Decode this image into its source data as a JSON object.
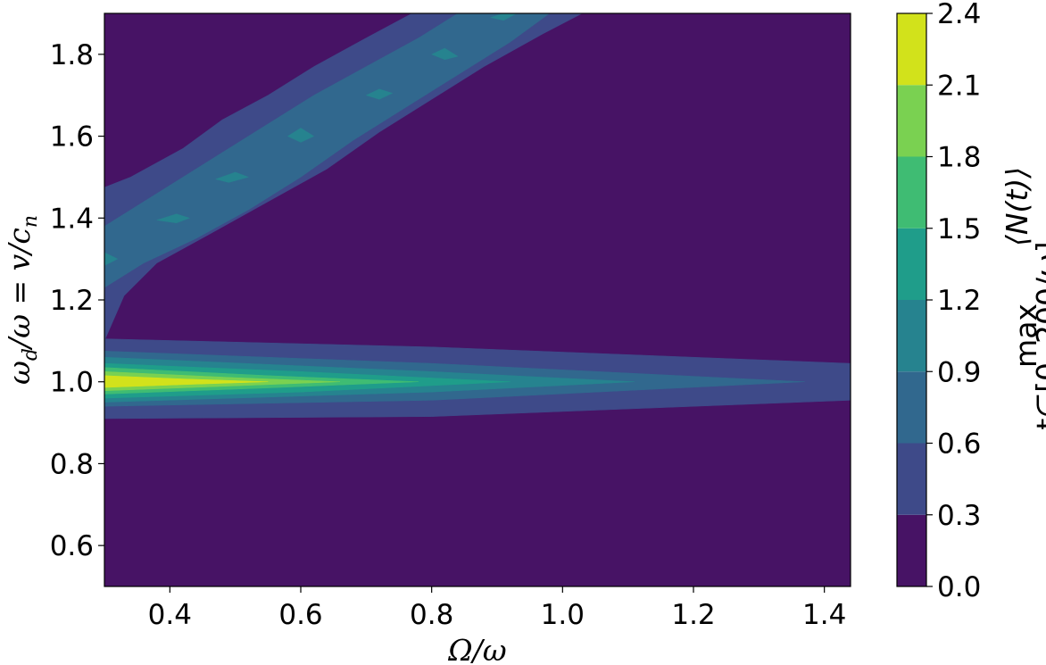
{
  "chart_data": {
    "type": "contourf",
    "xlabel": "Ω/ω",
    "ylabel": "ω_d/ω = v/c_n",
    "colorbar_label": "max_{t∈[0, 200/ω]} ⟨N(t)⟩",
    "colorbar_label_main": "max",
    "colorbar_label_sub": "t∈[0, 200/ω]",
    "colorbar_label_expr": "⟨N(t)⟩",
    "xlim": [
      0.3,
      1.44
    ],
    "ylim": [
      0.5,
      1.9
    ],
    "x_ticks": [
      0.4,
      0.6,
      0.8,
      1.0,
      1.2,
      1.4
    ],
    "x_tick_labels": [
      "0.4",
      "0.6",
      "0.8",
      "1.0",
      "1.2",
      "1.4"
    ],
    "y_ticks": [
      0.6,
      0.8,
      1.0,
      1.2,
      1.4,
      1.6,
      1.8
    ],
    "y_tick_labels": [
      "0.6",
      "0.8",
      "1.0",
      "1.2",
      "1.4",
      "1.6",
      "1.8"
    ],
    "levels": [
      0.0,
      0.3,
      0.6,
      0.9,
      1.2,
      1.5,
      1.8,
      2.1,
      2.4
    ],
    "level_labels": [
      "0.0",
      "0.3",
      "0.6",
      "0.9",
      "1.2",
      "1.5",
      "1.8",
      "2.1",
      "2.4"
    ],
    "colormap": [
      "#471365",
      "#3e4a89",
      "#31688e",
      "#26838f",
      "#1f9d8a",
      "#3fbc73",
      "#7ad151",
      "#d2e21b"
    ],
    "regions": [
      {
        "name": "upper-resonance-band-outer",
        "level": 1,
        "polygon": [
          [
            0.3,
            1.475
          ],
          [
            0.34,
            1.5
          ],
          [
            0.42,
            1.57
          ],
          [
            0.48,
            1.64
          ],
          [
            0.55,
            1.7
          ],
          [
            0.62,
            1.77
          ],
          [
            0.7,
            1.84
          ],
          [
            0.77,
            1.9
          ],
          [
            1.03,
            1.9
          ],
          [
            0.97,
            1.85
          ],
          [
            0.88,
            1.77
          ],
          [
            0.8,
            1.69
          ],
          [
            0.72,
            1.61
          ],
          [
            0.64,
            1.52
          ],
          [
            0.55,
            1.44
          ],
          [
            0.46,
            1.36
          ],
          [
            0.38,
            1.29
          ],
          [
            0.33,
            1.21
          ],
          [
            0.3,
            1.1
          ]
        ]
      },
      {
        "name": "upper-resonance-band-inner",
        "level": 2,
        "polygon": [
          [
            0.3,
            1.38
          ],
          [
            0.38,
            1.46
          ],
          [
            0.46,
            1.54
          ],
          [
            0.54,
            1.62
          ],
          [
            0.62,
            1.7
          ],
          [
            0.7,
            1.77
          ],
          [
            0.78,
            1.84
          ],
          [
            0.84,
            1.9
          ],
          [
            0.98,
            1.9
          ],
          [
            0.92,
            1.83
          ],
          [
            0.84,
            1.75
          ],
          [
            0.76,
            1.67
          ],
          [
            0.68,
            1.59
          ],
          [
            0.6,
            1.5
          ],
          [
            0.52,
            1.42
          ],
          [
            0.44,
            1.35
          ],
          [
            0.36,
            1.29
          ],
          [
            0.3,
            1.23
          ]
        ]
      },
      {
        "name": "upper-band-peak-1",
        "level": 3,
        "polygon": [
          [
            0.3,
            1.316
          ],
          [
            0.32,
            1.3
          ],
          [
            0.3,
            1.284
          ]
        ]
      },
      {
        "name": "upper-band-peak-2",
        "level": 3,
        "polygon": [
          [
            0.38,
            1.395
          ],
          [
            0.41,
            1.41
          ],
          [
            0.43,
            1.4
          ],
          [
            0.41,
            1.388
          ]
        ]
      },
      {
        "name": "upper-band-peak-3",
        "level": 3,
        "polygon": [
          [
            0.47,
            1.495
          ],
          [
            0.5,
            1.512
          ],
          [
            0.52,
            1.5
          ],
          [
            0.49,
            1.487
          ]
        ]
      },
      {
        "name": "upper-band-peak-4",
        "level": 3,
        "polygon": [
          [
            0.58,
            1.6
          ],
          [
            0.6,
            1.62
          ],
          [
            0.62,
            1.6
          ],
          [
            0.6,
            1.585
          ]
        ]
      },
      {
        "name": "upper-band-peak-5",
        "level": 3,
        "polygon": [
          [
            0.7,
            1.7
          ],
          [
            0.72,
            1.715
          ],
          [
            0.74,
            1.705
          ],
          [
            0.72,
            1.69
          ]
        ]
      },
      {
        "name": "upper-band-peak-6",
        "level": 3,
        "polygon": [
          [
            0.8,
            1.8
          ],
          [
            0.82,
            1.815
          ],
          [
            0.84,
            1.795
          ],
          [
            0.82,
            1.787
          ]
        ]
      },
      {
        "name": "upper-band-peak-7",
        "level": 3,
        "polygon": [
          [
            0.89,
            1.89
          ],
          [
            0.91,
            1.9
          ],
          [
            0.93,
            1.9
          ],
          [
            0.91,
            1.883
          ]
        ]
      },
      {
        "name": "primary-resonance-level-1",
        "level": 1,
        "polygon": [
          [
            0.3,
            1.105
          ],
          [
            0.8,
            1.085
          ],
          [
            1.44,
            1.045
          ],
          [
            1.44,
            0.955
          ],
          [
            0.8,
            0.915
          ],
          [
            0.3,
            0.91
          ]
        ]
      },
      {
        "name": "primary-resonance-level-2",
        "level": 2,
        "polygon": [
          [
            0.3,
            1.075
          ],
          [
            0.8,
            1.045
          ],
          [
            1.37,
            1.0
          ],
          [
            0.8,
            0.955
          ],
          [
            0.3,
            0.94
          ]
        ]
      },
      {
        "name": "primary-resonance-level-3",
        "level": 3,
        "polygon": [
          [
            0.3,
            1.06
          ],
          [
            0.8,
            1.025
          ],
          [
            1.11,
            1.0
          ],
          [
            0.8,
            0.975
          ],
          [
            0.3,
            0.95
          ]
        ]
      },
      {
        "name": "primary-resonance-level-4",
        "level": 4,
        "polygon": [
          [
            0.3,
            1.045
          ],
          [
            0.6,
            1.025
          ],
          [
            0.92,
            1.0
          ],
          [
            0.6,
            0.975
          ],
          [
            0.3,
            0.96
          ]
        ]
      },
      {
        "name": "primary-resonance-level-5",
        "level": 5,
        "polygon": [
          [
            0.3,
            1.035
          ],
          [
            0.55,
            1.015
          ],
          [
            0.78,
            1.0
          ],
          [
            0.55,
            0.985
          ],
          [
            0.3,
            0.97
          ]
        ]
      },
      {
        "name": "primary-resonance-level-6",
        "level": 6,
        "polygon": [
          [
            0.3,
            1.025
          ],
          [
            0.5,
            1.01
          ],
          [
            0.66,
            1.0
          ],
          [
            0.5,
            0.99
          ],
          [
            0.3,
            0.978
          ]
        ]
      },
      {
        "name": "primary-resonance-level-7",
        "level": 7,
        "polygon": [
          [
            0.3,
            1.015
          ],
          [
            0.42,
            1.007
          ],
          [
            0.55,
            1.0
          ],
          [
            0.42,
            0.993
          ],
          [
            0.3,
            0.986
          ]
        ]
      }
    ]
  }
}
